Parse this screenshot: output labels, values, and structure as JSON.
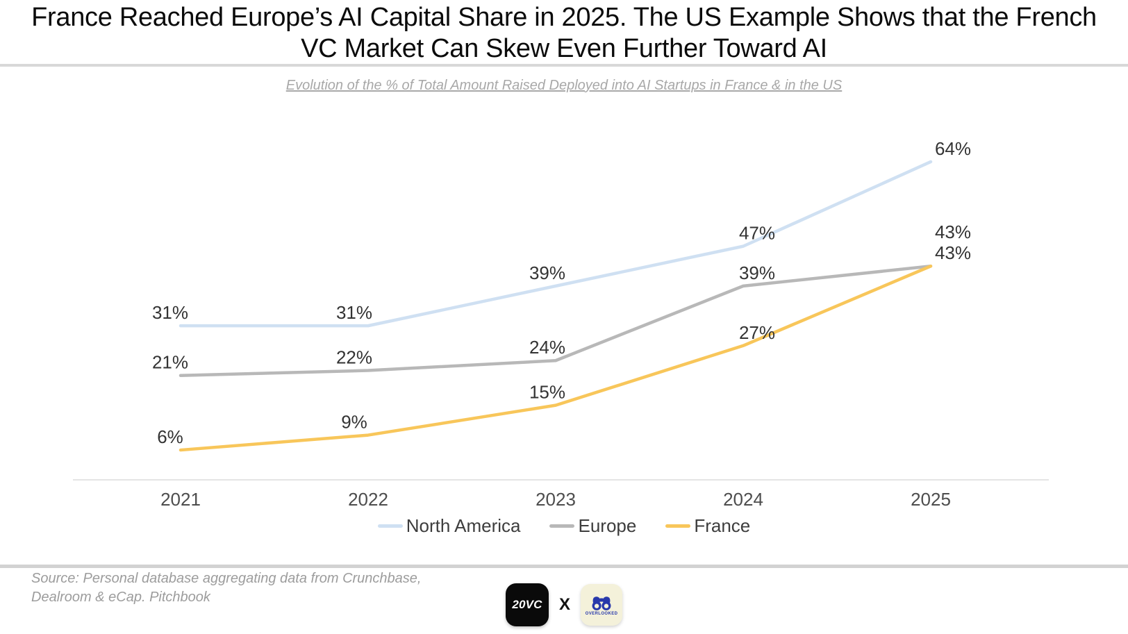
{
  "title": {
    "lines": [
      "France Reached Europe’s AI Capital Share in 2025. The US Example Shows that the French",
      "VC Market Can Skew Even Further Toward AI"
    ]
  },
  "subtitle": "Evolution of the % of Total Amount Raised Deployed into AI Startups in France & in the US",
  "chart_data": {
    "type": "line",
    "title": "Evolution of the % of Total Amount Raised Deployed into AI Startups in France & in the US",
    "categories": [
      "2021",
      "2022",
      "2023",
      "2024",
      "2025"
    ],
    "series": [
      {
        "name": "North America",
        "values": [
          31,
          31,
          39,
          47,
          64
        ],
        "color": "#cfe0f2"
      },
      {
        "name": "Europe",
        "values": [
          21,
          22,
          24,
          39,
          43
        ],
        "color": "#b8b8b8"
      },
      {
        "name": "France",
        "values": [
          6,
          9,
          15,
          27,
          43
        ],
        "color": "#f8c65a"
      }
    ],
    "value_suffix": "%",
    "data_labels": true,
    "ylim": [
      0,
      70
    ],
    "grid": false,
    "legend_position": "bottom",
    "axis_color": "#dcdcdc",
    "data_label_color": "#333333",
    "tick_label_color": "#4d4d4d"
  },
  "footer": {
    "source_lines": [
      "Source: Personal database aggregating data from Crunchbase,",
      "Dealroom & eCap. Pitchbook"
    ],
    "logo_20vc_text": "20VC",
    "separator": "X",
    "logo_overlooked_text": "OVERLOOKED"
  }
}
